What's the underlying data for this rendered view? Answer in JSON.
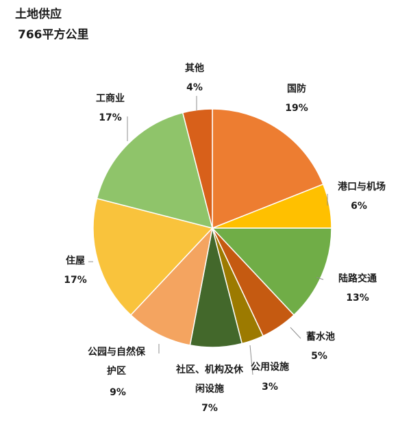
{
  "chart_data": {
    "type": "pie",
    "title": "土地供应",
    "subtitle": "766平方公里",
    "slices": [
      {
        "label": "国防",
        "value": 19,
        "pct_label": "19%",
        "color": "#ED7D31"
      },
      {
        "label": "港口与机场",
        "value": 6,
        "pct_label": "6%",
        "color": "#FFC000"
      },
      {
        "label": "陆路交通",
        "value": 13,
        "pct_label": "13%",
        "color": "#70AD47"
      },
      {
        "label": "蓄水池",
        "value": 5,
        "pct_label": "5%",
        "color": "#C55A11"
      },
      {
        "label": "公用设施",
        "value": 3,
        "pct_label": "3%",
        "color": "#9C7A00"
      },
      {
        "label": "社区、机构及休闲设施",
        "value": 7,
        "pct_label": "7%",
        "color": "#43682B"
      },
      {
        "label": "公园与自然保护区",
        "value": 9,
        "pct_label": "9%",
        "color": "#F4A460"
      },
      {
        "label": "住屋",
        "value": 17,
        "pct_label": "17%",
        "color": "#F9C33C"
      },
      {
        "label": "工商业",
        "value": 17,
        "pct_label": "17%",
        "color": "#8FC46A"
      },
      {
        "label": "其他",
        "value": 4,
        "pct_label": "4%",
        "color": "#D8601A"
      }
    ]
  }
}
